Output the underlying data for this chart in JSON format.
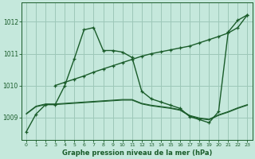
{
  "title": "Graphe pression niveau de la mer (hPa)",
  "bg": "#c5e8dc",
  "grid_color": "#9dc8b8",
  "lc": "#1a5c2a",
  "x": [
    0,
    1,
    2,
    3,
    4,
    5,
    6,
    7,
    8,
    9,
    10,
    11,
    12,
    13,
    14,
    15,
    16,
    17,
    18,
    19,
    20,
    21,
    22,
    23
  ],
  "ylim": [
    1008.3,
    1012.6
  ],
  "yticks": [
    1009,
    1010,
    1011,
    1012
  ],
  "s1": [
    1008.55,
    1009.1,
    1009.4,
    1009.4,
    1010.0,
    1010.85,
    1011.75,
    1011.82,
    1011.1,
    1011.1,
    1011.05,
    1010.88,
    1009.82,
    1009.58,
    1009.48,
    1009.38,
    1009.28,
    1009.02,
    1008.93,
    1008.83,
    1009.18,
    1011.68,
    1012.05,
    1012.22
  ],
  "s2_x": [
    3,
    4,
    5,
    6,
    7,
    8,
    9,
    10,
    11,
    12,
    13,
    14,
    15,
    16,
    17,
    18,
    19,
    20,
    21,
    22,
    23
  ],
  "s2_y": [
    1010.0,
    1010.1,
    1010.2,
    1010.3,
    1010.42,
    1010.52,
    1010.62,
    1010.72,
    1010.82,
    1010.92,
    1011.0,
    1011.06,
    1011.12,
    1011.18,
    1011.24,
    1011.34,
    1011.44,
    1011.54,
    1011.65,
    1011.82,
    1012.22
  ],
  "s3": [
    1009.12,
    1009.35,
    1009.42,
    1009.42,
    1009.44,
    1009.46,
    1009.48,
    1009.5,
    1009.52,
    1009.54,
    1009.56,
    1009.56,
    1009.44,
    1009.38,
    1009.34,
    1009.3,
    1009.24,
    1009.06,
    1008.98,
    1008.94,
    1009.08,
    1009.18,
    1009.3,
    1009.4
  ],
  "s4": [
    1009.1,
    1009.33,
    1009.4,
    1009.4,
    1009.42,
    1009.44,
    1009.46,
    1009.48,
    1009.5,
    1009.52,
    1009.54,
    1009.54,
    1009.42,
    1009.36,
    1009.32,
    1009.28,
    1009.22,
    1009.04,
    1008.96,
    1008.92,
    1009.06,
    1009.16,
    1009.28,
    1009.38
  ]
}
